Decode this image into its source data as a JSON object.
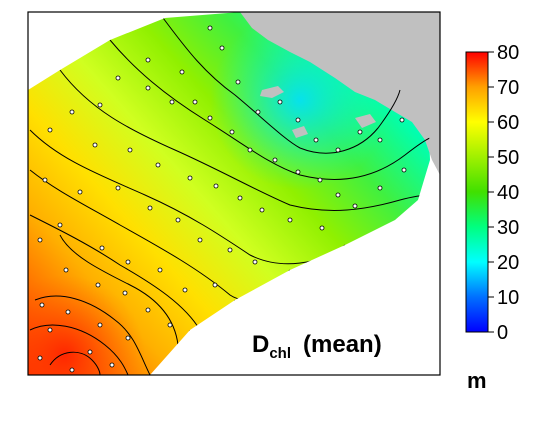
{
  "map_title": {
    "main": "D",
    "subscript": "chl",
    "suffix": "(mean)"
  },
  "colorbar": {
    "ticks": [
      "0",
      "10",
      "20",
      "30",
      "40",
      "50",
      "60",
      "70",
      "80"
    ],
    "unit": "m",
    "min": 0,
    "max": 80,
    "colors": [
      "#0000ff",
      "#00a0ff",
      "#00ffff",
      "#00ff60",
      "#40e000",
      "#a0f000",
      "#ffff00",
      "#ffa000",
      "#ff0000"
    ]
  },
  "land_color": "#c0c0c0"
}
